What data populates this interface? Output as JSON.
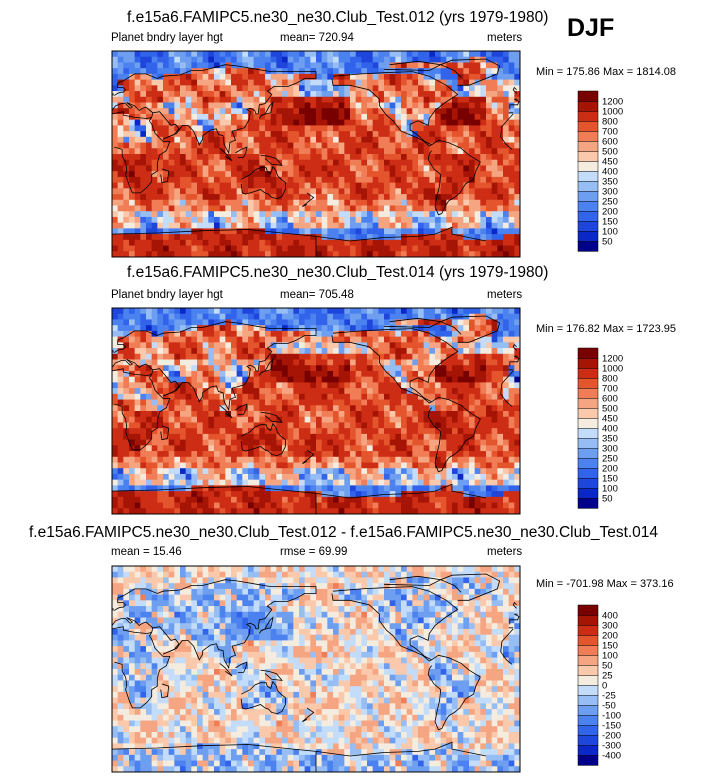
{
  "season": "DJF",
  "chart_data": [
    {
      "type": "heatmap",
      "title": "f.e15a6.FAMIPC5.ne30_ne30.Club_Test.012 (yrs 1979-1980)",
      "variable": "Planet bndry layer hgt",
      "stat_text": "mean= 720.94",
      "units": "meters",
      "minmax": "Min = 175.86 Max = 1814.08",
      "levels": [
        "50",
        "100",
        "150",
        "200",
        "250",
        "300",
        "350",
        "400",
        "450",
        "500",
        "600",
        "700",
        "800",
        "1000",
        "1200"
      ],
      "colors": [
        "#00008b",
        "#0a28c8",
        "#1e46dc",
        "#3264eb",
        "#4b82f0",
        "#6e9ef0",
        "#96bef5",
        "#c3dcfa",
        "#f5ece0",
        "#fac8aa",
        "#f5a582",
        "#f07d55",
        "#e4552d",
        "#cd2d14",
        "#a51405",
        "#780000"
      ]
    },
    {
      "type": "heatmap",
      "title": "f.e15a6.FAMIPC5.ne30_ne30.Club_Test.014 (yrs 1979-1980)",
      "variable": "Planet bndry layer hgt",
      "stat_text": "mean= 705.48",
      "units": "meters",
      "minmax": "Min = 176.82 Max = 1723.95",
      "levels": [
        "50",
        "100",
        "150",
        "200",
        "250",
        "300",
        "350",
        "400",
        "450",
        "500",
        "600",
        "700",
        "800",
        "1000",
        "1200"
      ],
      "colors": [
        "#00008b",
        "#0a28c8",
        "#1e46dc",
        "#3264eb",
        "#4b82f0",
        "#6e9ef0",
        "#96bef5",
        "#c3dcfa",
        "#f5ece0",
        "#fac8aa",
        "#f5a582",
        "#f07d55",
        "#e4552d",
        "#cd2d14",
        "#a51405",
        "#780000"
      ]
    },
    {
      "type": "heatmap",
      "title": "f.e15a6.FAMIPC5.ne30_ne30.Club_Test.012 - f.e15a6.FAMIPC5.ne30_ne30.Club_Test.014",
      "mean_text": "mean =  15.46",
      "rmse_text": "rmse =  69.99",
      "units": "meters",
      "minmax": "Min = -701.98 Max = 373.16",
      "levels": [
        "-400",
        "-300",
        "-200",
        "-150",
        "-100",
        "-50",
        "-25",
        "0",
        "25",
        "50",
        "100",
        "150",
        "200",
        "300",
        "400"
      ],
      "colors": [
        "#00008b",
        "#0a28c8",
        "#1e46dc",
        "#3264eb",
        "#4b82f0",
        "#6e9ef0",
        "#96bef5",
        "#c3dcfa",
        "#f5ece0",
        "#fac8aa",
        "#f5a582",
        "#f07d55",
        "#e4552d",
        "#cd2d14",
        "#a51405",
        "#780000"
      ]
    }
  ]
}
